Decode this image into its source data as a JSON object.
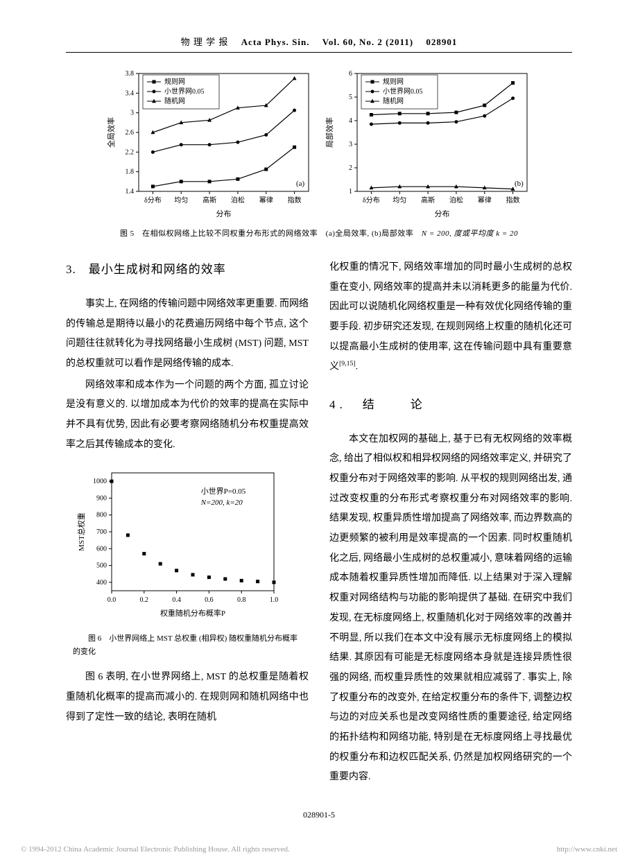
{
  "header": {
    "journal_cn": "物 理 学 报",
    "journal_en": "Acta Phys. Sin.",
    "vol": "Vol. 60, No. 2 (2011)",
    "article_id": "028901"
  },
  "fig5": {
    "caption_prefix": "图 5　在相似权网络上比较不同权重分布形式的网络效率　(a)全局效率, (b)局部效率　",
    "caption_params": "N = 200, 度或平均度 k = 20",
    "chart_a": {
      "type": "line",
      "xlabel": "分布",
      "ylabel": "全局效率",
      "categories": [
        "δ分布",
        "均匀",
        "高斯",
        "泊松",
        "幂律",
        "指数"
      ],
      "ylim": [
        1.4,
        3.8
      ],
      "yticks": [
        1.4,
        1.8,
        2.2,
        2.6,
        3.0,
        3.4,
        3.8
      ],
      "series": [
        {
          "name": "规则网",
          "marker": "square",
          "values": [
            1.5,
            1.6,
            1.6,
            1.65,
            1.85,
            2.3
          ]
        },
        {
          "name": "小世界网0.05",
          "marker": "circle",
          "values": [
            2.2,
            2.35,
            2.35,
            2.4,
            2.55,
            3.05
          ]
        },
        {
          "name": "随机网",
          "marker": "triangle",
          "values": [
            2.6,
            2.8,
            2.85,
            3.1,
            3.15,
            3.7
          ]
        }
      ],
      "panel_label": "(a)",
      "line_color": "#000000",
      "background_color": "#ffffff",
      "axis_color": "#000000",
      "label_fontsize": 11,
      "tick_fontsize": 10,
      "marker_size": 5,
      "line_width": 1.2
    },
    "chart_b": {
      "type": "line",
      "xlabel": "分布",
      "ylabel": "局部效率",
      "categories": [
        "δ分布",
        "均匀",
        "高斯",
        "泊松",
        "幂律",
        "指数"
      ],
      "ylim": [
        1,
        6
      ],
      "yticks": [
        1,
        2,
        3,
        4,
        5,
        6
      ],
      "series": [
        {
          "name": "规则网",
          "marker": "square",
          "values": [
            4.25,
            4.3,
            4.3,
            4.35,
            4.65,
            5.6
          ]
        },
        {
          "name": "小世界网0.05",
          "marker": "circle",
          "values": [
            3.85,
            3.9,
            3.9,
            3.95,
            4.2,
            4.95
          ]
        },
        {
          "name": "随机网",
          "marker": "triangle",
          "values": [
            1.15,
            1.2,
            1.2,
            1.2,
            1.15,
            1.1
          ]
        }
      ],
      "panel_label": "(b)",
      "line_color": "#000000",
      "background_color": "#ffffff",
      "axis_color": "#000000",
      "label_fontsize": 11,
      "tick_fontsize": 10,
      "marker_size": 5,
      "line_width": 1.2
    }
  },
  "section3": {
    "heading": "3.　最小生成树和网络的效率",
    "para1": "事实上, 在网络的传输问题中网络效率更重要. 而网络的传输总是期待以最小的花费遍历网络中每个节点, 这个问题往往就转化为寻找网络最小生成树 (MST) 问题, MST 的总权重就可以看作是网络传输的成本.",
    "para2": "网络效率和成本作为一个问题的两个方面, 孤立讨论是没有意义的. 以增加成本为代价的效率的提高在实际中并不具有优势, 因此有必要考察网络随机分布权重提高效率之后其传输成本的变化."
  },
  "fig6": {
    "type": "scatter",
    "xlabel": "权重随机分布概率P",
    "ylabel": "MST总权重",
    "annotation1": "小世界P=0.05",
    "annotation2": "N=200, k=20",
    "xlim": [
      0.0,
      1.0
    ],
    "ylim": [
      350,
      1050
    ],
    "xticks": [
      0.0,
      0.2,
      0.4,
      0.6,
      0.8,
      1.0
    ],
    "yticks": [
      400,
      500,
      600,
      700,
      800,
      900,
      1000
    ],
    "points": [
      [
        0.0,
        1000
      ],
      [
        0.1,
        680
      ],
      [
        0.2,
        570
      ],
      [
        0.3,
        510
      ],
      [
        0.4,
        470
      ],
      [
        0.5,
        445
      ],
      [
        0.6,
        430
      ],
      [
        0.7,
        420
      ],
      [
        0.8,
        410
      ],
      [
        0.9,
        405
      ],
      [
        1.0,
        400
      ]
    ],
    "marker": "square",
    "marker_color": "#000000",
    "marker_size": 5,
    "background_color": "#ffffff",
    "axis_color": "#000000",
    "label_fontsize": 11,
    "tick_fontsize": 10,
    "caption": "图 6　小世界网络上 MST 总权重 (相异权) 随权重随机分布概率的变化"
  },
  "para_after_fig6": "图 6 表明, 在小世界网络上, MST 的总权重是随着权重随机化概率的提高而减小的. 在规则网和随机网络中也得到了定性一致的结论, 表明在随机",
  "col2_top": "化权重的情况下, 网络效率增加的同时最小生成树的总权重在变小, 网络效率的提高并未以消耗更多的能量为代价. 因此可以说随机化网络权重是一种有效优化网络传输的重要手段. 初步研究还发现, 在规则网络上权重的随机化还可以提高最小生成树的使用率, 这在传输问题中具有重要意义",
  "col2_top_ref": "[9,15]",
  "section4": {
    "heading": "4.　结　　论",
    "para": "本文在加权网的基础上, 基于已有无权网络的效率概念, 给出了相似权和相异权网络的网络效率定义, 并研究了权重分布对于网络效率的影响. 从平权的规则网络出发, 通过改变权重的分布形式考察权重分布对网络效率的影响. 结果发现, 权重异质性增加提高了网络效率, 而边界数高的边更频繁的被利用是效率提高的一个因素. 同时权重随机化之后, 网络最小生成树的总权重减小, 意味着网络的运输成本随着权重异质性增加而降低. 以上结果对于深入理解权重对网络结构与功能的影响提供了基础. 在研究中我们发现, 在无标度网络上, 权重随机化对于网络效率的改善并不明显, 所以我们在本文中没有展示无标度网络上的模拟结果. 其原因有可能是无标度网络本身就是连接异质性很强的网络, 而权重异质性的效果就相应减弱了. 事实上, 除了权重分布的改变外, 在给定权重分布的条件下, 调整边权与边的对应关系也是改变网络性质的重要途径, 给定网络的拓扑结构和网络功能, 特别是在无标度网络上寻找最优的权重分布和边权匹配关系, 仍然是加权网络研究的一个重要内容."
  },
  "page_number": "028901-5",
  "footer": {
    "left": "© 1994-2012 China Academic Journal Electronic Publishing House. All rights reserved.",
    "right": "http://www.cnki.net"
  }
}
